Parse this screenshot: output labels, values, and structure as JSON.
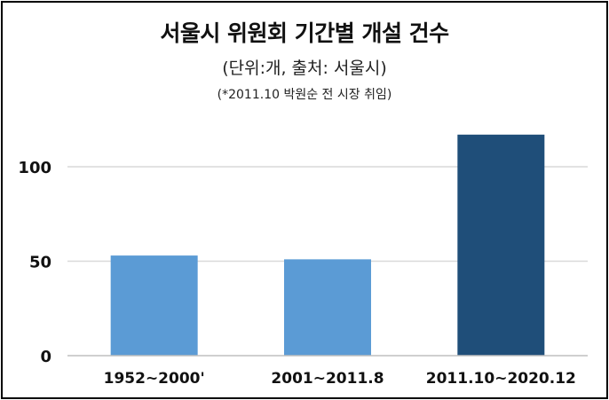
{
  "chart_data": {
    "type": "bar",
    "title": "서울시 위원회 기간별 개설 건수",
    "subtitle": "(단위:개, 출처: 서울시)",
    "note": "(*2011.10 박원순 전 시장 취임)",
    "categories": [
      "1952~2000'",
      "2001~2011.8",
      "2011.10~2020.12"
    ],
    "values": [
      53,
      51,
      117
    ],
    "bar_colors": [
      "#5b9bd5",
      "#5b9bd5",
      "#1f4e79"
    ],
    "yticks": [
      0,
      50,
      100
    ],
    "ytick_labels": [
      "0",
      "50",
      "100"
    ],
    "ylim": [
      0,
      125
    ],
    "grid": true,
    "gridline_color": "#d9d9d9",
    "axis_color": "#bfbfbf"
  }
}
